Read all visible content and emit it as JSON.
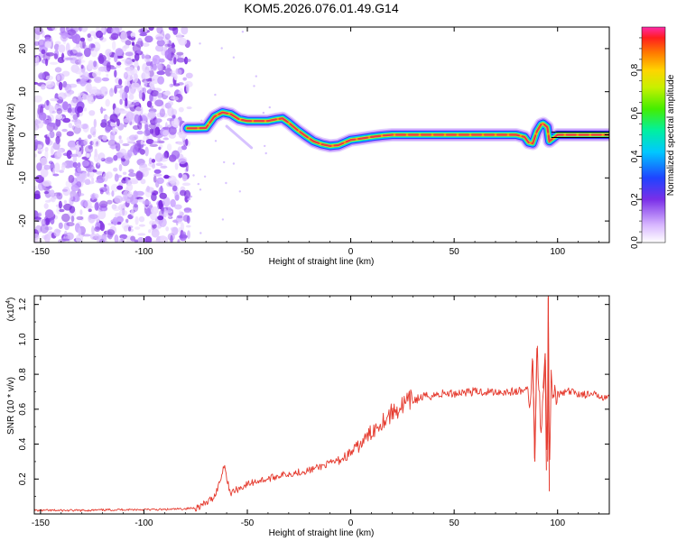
{
  "title": "KOM5.2026.076.01.49.G14",
  "colors": {
    "ridge_core": "#e8384a",
    "snr_line": "#e53a2e",
    "noise": "#8a3fe6",
    "frame": "#000000"
  },
  "chart_data": [
    {
      "type": "heatmap",
      "xlabel": "Height of straight line (km)",
      "ylabel": "Frequency (Hz)",
      "xlim": [
        -153,
        125
      ],
      "ylim": [
        -25,
        25
      ],
      "x_ticks": [
        "-150",
        "-100",
        "-50",
        "0",
        "50",
        "100"
      ],
      "y_ticks": [
        "20",
        "10",
        "0",
        "-10",
        "-20"
      ],
      "ridge": {
        "x": [
          -79,
          -75,
          -70,
          -66,
          -62,
          -58,
          -54,
          -50,
          -45,
          -40,
          -36,
          -33,
          -30,
          -26,
          -22,
          -18,
          -14,
          -10,
          -6,
          -3,
          0,
          3,
          6,
          10,
          15,
          20,
          30,
          40,
          50,
          60,
          70,
          80,
          84,
          86,
          88,
          90,
          92,
          93,
          95,
          96,
          100,
          110,
          120,
          125
        ],
        "y": [
          1.5,
          1.5,
          1.6,
          4.2,
          5.2,
          4.8,
          3.6,
          3.2,
          3.2,
          3.2,
          3.6,
          3.8,
          2.8,
          1.2,
          -0.2,
          -1.5,
          -2.2,
          -2.6,
          -2.4,
          -1.8,
          -1.2,
          -1.0,
          -0.8,
          -0.5,
          -0.2,
          0,
          0,
          0,
          0,
          0,
          0,
          0,
          -0.5,
          -1.8,
          -2.0,
          0.8,
          2.4,
          2.6,
          1.8,
          -1.5,
          0,
          0,
          0,
          0
        ]
      },
      "colorbar": {
        "label": "Normalized spectral amplitude",
        "ticks": [
          "0.0",
          "0.2",
          "0.4",
          "0.6",
          "0.8"
        ],
        "range": [
          0,
          1
        ]
      }
    },
    {
      "type": "line",
      "xlabel": "Height of straight line (km)",
      "ylabel": "SNR (10 * v/v)",
      "scale_label": "(x10",
      "scale_exp": "4",
      "xlim": [
        -153,
        125
      ],
      "ylim": [
        0,
        1.25
      ],
      "x_ticks": [
        "-150",
        "-100",
        "-50",
        "0",
        "50",
        "100"
      ],
      "y_ticks": [
        "0.2",
        "0.4",
        "0.6",
        "0.8",
        "1.0",
        "1.2"
      ],
      "series": [
        {
          "x": [
            -153,
            -130,
            -110,
            -90,
            -80,
            -75,
            -70,
            -66,
            -64,
            -62,
            -61,
            -60,
            -58,
            -55,
            -50,
            -45,
            -40,
            -35,
            -30,
            -25,
            -20,
            -15,
            -10,
            -5,
            0,
            5,
            10,
            15,
            20,
            25,
            30,
            35,
            40,
            45,
            50,
            55,
            60,
            65,
            70,
            75,
            80,
            85,
            87,
            88,
            89,
            90,
            91,
            92,
            93,
            94,
            95,
            95.5,
            96,
            97,
            98,
            99,
            100,
            105,
            110,
            115,
            120,
            125
          ],
          "y": [
            0.02,
            0.02,
            0.025,
            0.025,
            0.03,
            0.035,
            0.06,
            0.1,
            0.16,
            0.24,
            0.3,
            0.2,
            0.12,
            0.14,
            0.17,
            0.19,
            0.2,
            0.22,
            0.23,
            0.24,
            0.25,
            0.27,
            0.29,
            0.31,
            0.35,
            0.4,
            0.47,
            0.53,
            0.58,
            0.62,
            0.65,
            0.67,
            0.68,
            0.69,
            0.69,
            0.7,
            0.7,
            0.7,
            0.7,
            0.7,
            0.7,
            0.71,
            0.65,
            0.88,
            0.3,
            0.95,
            0.78,
            0.45,
            0.72,
            0.92,
            0.25,
            1.24,
            0.13,
            0.9,
            0.6,
            0.72,
            0.68,
            0.7,
            0.69,
            0.68,
            0.68,
            0.67
          ]
        }
      ]
    }
  ]
}
